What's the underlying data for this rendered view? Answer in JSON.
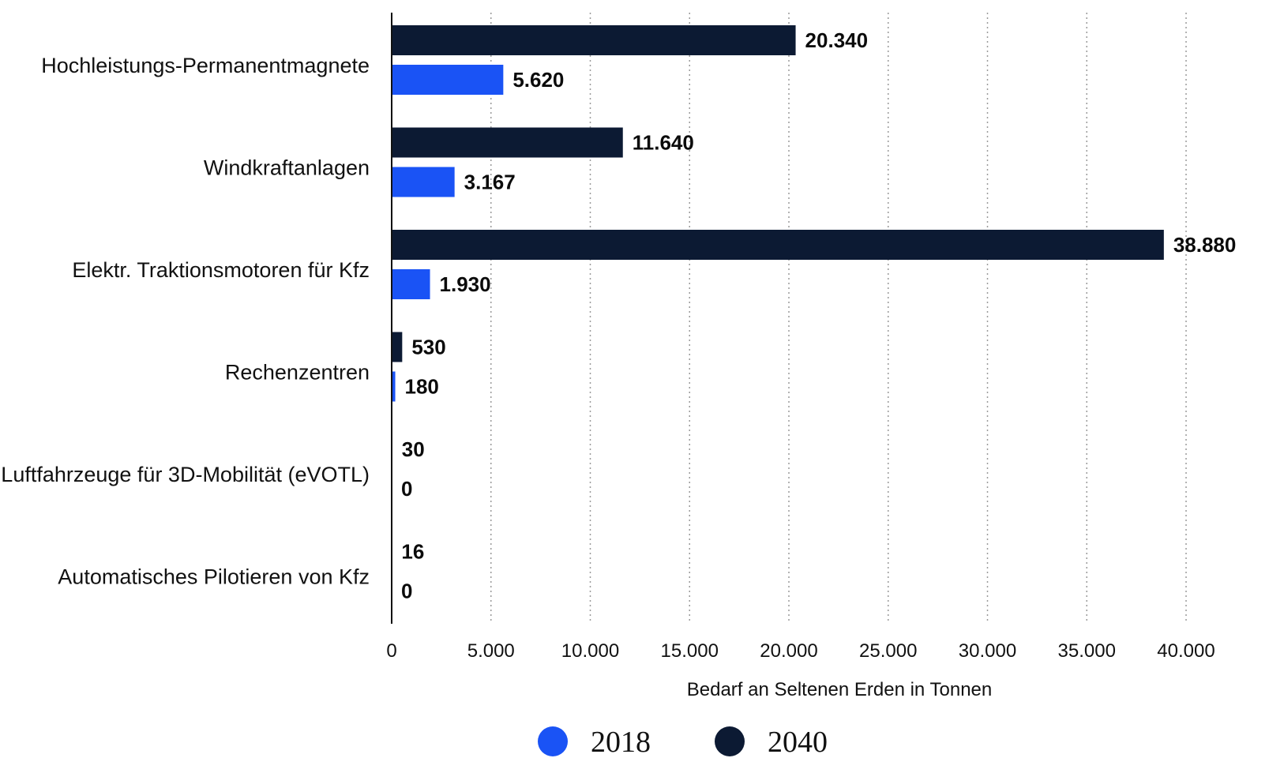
{
  "chart_data": {
    "type": "bar",
    "orientation": "horizontal",
    "categories": [
      "Hochleistungs-Permanentmagnete",
      "Windkraftanlagen",
      "Elektr. Traktionsmotoren für Kfz",
      "Rechenzentren",
      "Luftfahrzeuge für 3D-Mobilität (eVOTL)",
      "Automatisches Pilotieren von Kfz"
    ],
    "series": [
      {
        "name": "2040",
        "color": "#0c1a33",
        "values": [
          20340,
          11640,
          38880,
          530,
          30,
          16
        ],
        "labels": [
          "20.340",
          "11.640",
          "38.880",
          "530",
          "30",
          "16"
        ]
      },
      {
        "name": "2018",
        "color": "#1a53f5",
        "values": [
          5620,
          3167,
          1930,
          180,
          0,
          0
        ],
        "labels": [
          "5.620",
          "3.167",
          "1.930",
          "180",
          "0",
          "0"
        ]
      }
    ],
    "xlim": [
      0,
      40000
    ],
    "xticks": [
      0,
      5000,
      10000,
      15000,
      20000,
      25000,
      30000,
      35000,
      40000
    ],
    "xtick_labels": [
      "0",
      "5.000",
      "10.000",
      "15.000",
      "20.000",
      "25.000",
      "30.000",
      "35.000",
      "40.000"
    ],
    "xlabel": "Bedarf an Seltenen Erden in Tonnen",
    "ylabel": "",
    "grid": "vertical dotted",
    "legend": {
      "position": "bottom-center",
      "items": [
        {
          "label": "2018",
          "color": "#1a53f5"
        },
        {
          "label": "2040",
          "color": "#0c1a33"
        }
      ]
    }
  }
}
